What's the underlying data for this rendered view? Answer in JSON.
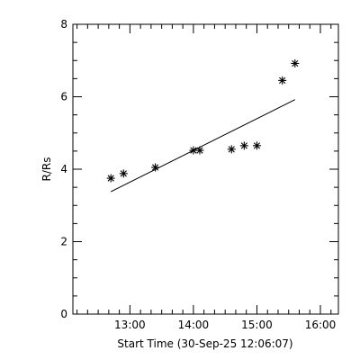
{
  "chart_data": {
    "type": "scatter",
    "xlabel": "Start Time (30-Sep-25 12:06:07)",
    "ylabel": "R/Rs",
    "xlim": [
      "12:06:07",
      "16:17:00"
    ],
    "ylim": [
      0,
      8
    ],
    "x_ticks": [
      "13:00",
      "14:00",
      "15:00",
      "16:00"
    ],
    "y_ticks": [
      "0",
      "2",
      "4",
      "6",
      "8"
    ],
    "grid": false,
    "series": [
      {
        "marker": "asterisk",
        "x": [
          "12:42",
          "12:54",
          "13:24",
          "14:00",
          "14:06",
          "14:36",
          "14:48",
          "15:00",
          "15:24",
          "15:36"
        ],
        "y": [
          3.75,
          3.88,
          4.05,
          4.52,
          4.52,
          4.55,
          4.65,
          4.65,
          6.45,
          6.92
        ]
      }
    ],
    "fit_line": {
      "x": [
        "12:42",
        "15:36"
      ],
      "y": [
        3.38,
        5.92
      ]
    }
  }
}
